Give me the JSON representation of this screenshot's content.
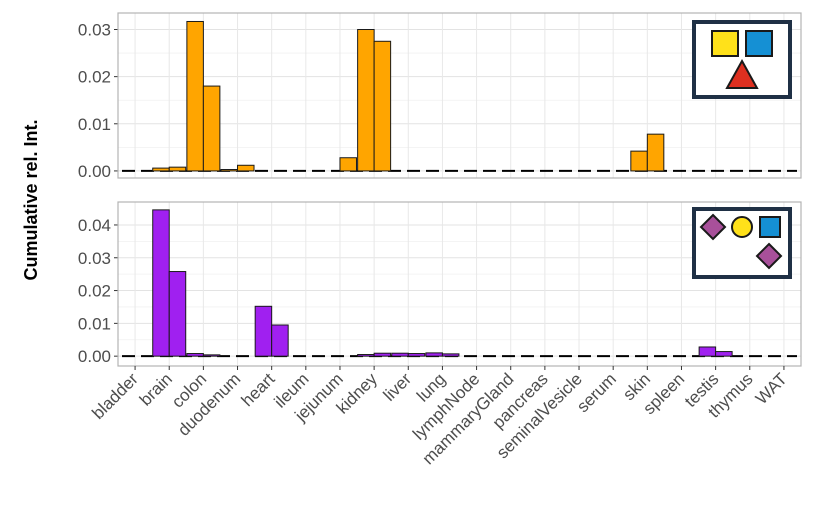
{
  "chart_data": {
    "type": "bar",
    "ylabel": "Cumulative rel. Int.",
    "categories": [
      "bladder",
      "brain",
      "colon",
      "duodenum",
      "heart",
      "ileum",
      "jejunum",
      "kidney",
      "liver",
      "lung",
      "lymphNode",
      "mammaryGland",
      "pancreas",
      "seminalVesicle",
      "serum",
      "skin",
      "spleen",
      "testis",
      "thymus",
      "WAT"
    ],
    "grid": true,
    "panels": [
      {
        "color": "#FFA500",
        "ylim": [
          -0.0015,
          0.0335
        ],
        "yticks": [
          "0.00",
          "0.01",
          "0.02",
          "0.03"
        ],
        "ytick_values": [
          0,
          0.01,
          0.02,
          0.03
        ],
        "legend_icons": [
          "yellow-square",
          "blue-square",
          "red-triangle"
        ],
        "series": [
          {
            "values": [
              0,
              0.0006,
              0.0317,
              0.0003,
              0,
              0,
              0,
              0.03,
              0,
              0,
              0,
              0,
              0,
              0,
              0,
              0.0042,
              0,
              0,
              0,
              0
            ]
          },
          {
            "values": [
              0,
              0.0008,
              0.018,
              0.0012,
              0,
              0,
              0.0028,
              0.0275,
              0,
              0,
              0,
              0,
              0,
              0,
              0,
              0.0078,
              0,
              0,
              0,
              0
            ]
          }
        ]
      },
      {
        "color": "#A020F0",
        "ylim": [
          -0.003,
          0.047
        ],
        "yticks": [
          "0.00",
          "0.01",
          "0.02",
          "0.03",
          "0.04"
        ],
        "ytick_values": [
          0,
          0.01,
          0.02,
          0.03,
          0.04
        ],
        "legend_icons": [
          "purple-diamond",
          "yellow-circle",
          "blue-square",
          "purple-diamond"
        ],
        "series": [
          {
            "values": [
              0,
              0.0446,
              0.0008,
              0,
              0.0152,
              0,
              0,
              0.0005,
              0.0009,
              0.001,
              0,
              0,
              0,
              0,
              0,
              0,
              0,
              0.0028,
              0,
              0
            ]
          },
          {
            "values": [
              0,
              0.0258,
              0.0004,
              0,
              0.0095,
              0,
              0,
              0.0009,
              0.0008,
              0.0007,
              0,
              0,
              0,
              0,
              0,
              0,
              0,
              0.0014,
              0,
              0
            ]
          }
        ]
      }
    ]
  }
}
